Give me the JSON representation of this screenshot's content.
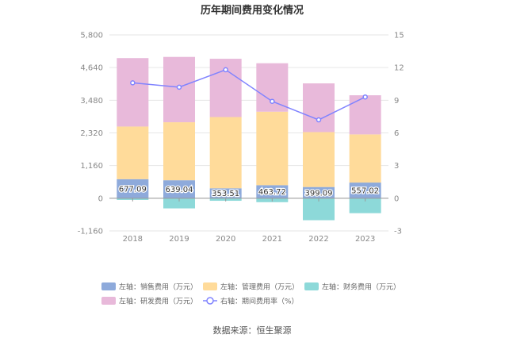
{
  "title": "历年期间费用变化情况",
  "source": "数据来源：恒生聚源",
  "colors": {
    "sales": "#8eaadb",
    "admin": "#ffdb9a",
    "finance": "#8dd9d9",
    "rd": "#e8b9da",
    "rate": "#8083ff"
  },
  "chart_data": {
    "type": "bar",
    "stacked": true,
    "categories": [
      "2018",
      "2019",
      "2020",
      "2021",
      "2022",
      "2023"
    ],
    "left_axis": {
      "ylim": [
        -1160,
        5800
      ],
      "ticks": [
        "-1,160",
        "0",
        "1,160",
        "2,320",
        "3,480",
        "4,640",
        "5,800"
      ]
    },
    "right_axis": {
      "ylim": [
        -3,
        15
      ],
      "ticks": [
        "-3",
        "0",
        "3",
        "6",
        "9",
        "12",
        "15"
      ]
    },
    "series": [
      {
        "name": "左轴：销售费用（万元）",
        "key": "sales",
        "axis": "left",
        "values": [
          677.09,
          639.04,
          353.51,
          463.72,
          399.09,
          557.02
        ],
        "labels": [
          "677.09",
          "639.04",
          "353.51",
          "463.72",
          "399.09",
          "557.02"
        ]
      },
      {
        "name": "左轴：管理费用（万元）",
        "key": "admin",
        "axis": "left",
        "values": [
          1870,
          2060,
          2530,
          2610,
          1950,
          1710
        ]
      },
      {
        "name": "左轴：财务费用（万元）",
        "key": "finance",
        "axis": "left",
        "values": [
          -60,
          -360,
          -90,
          -140,
          -780,
          -530
        ]
      },
      {
        "name": "左轴：研发费用（万元）",
        "key": "rd",
        "axis": "left",
        "values": [
          2430,
          2320,
          2070,
          1720,
          1730,
          1390
        ]
      },
      {
        "name": "右轴：期间费用率（%）",
        "key": "rate",
        "axis": "right",
        "type": "line",
        "values": [
          10.6,
          10.2,
          11.8,
          8.9,
          7.2,
          9.3
        ]
      }
    ]
  }
}
